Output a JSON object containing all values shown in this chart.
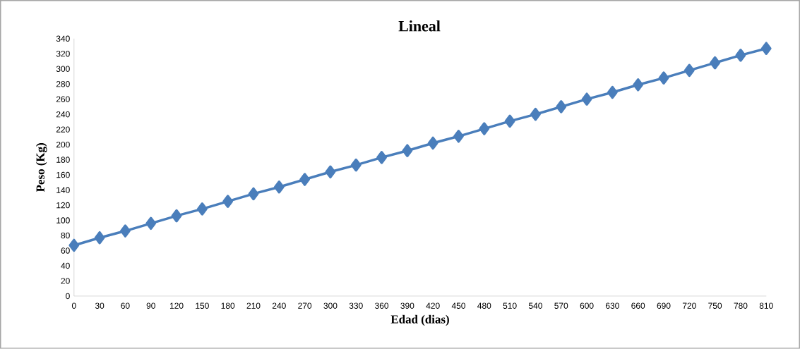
{
  "chart_data": {
    "type": "line",
    "title": "Lineal",
    "xlabel": "Edad (dias)",
    "ylabel": "Peso (Kg)",
    "categories": [
      "0",
      "30",
      "60",
      "90",
      "120",
      "150",
      "180",
      "210",
      "240",
      "270",
      "300",
      "330",
      "360",
      "390",
      "420",
      "450",
      "480",
      "510",
      "540",
      "570",
      "600",
      "630",
      "660",
      "690",
      "720",
      "750",
      "780",
      "810"
    ],
    "series": [
      {
        "color": "#4a7ebb",
        "values": [
          67,
          77,
          86,
          96,
          106,
          115,
          125,
          135,
          144,
          154,
          164,
          173,
          183,
          192,
          202,
          211,
          221,
          231,
          240,
          250,
          260,
          269,
          279,
          288,
          298,
          308,
          318,
          327
        ]
      }
    ],
    "ylim": [
      0,
      340
    ],
    "yticks": [
      0,
      20,
      40,
      60,
      80,
      100,
      120,
      140,
      160,
      180,
      200,
      220,
      240,
      260,
      280,
      300,
      320,
      340
    ],
    "marker": "diamond",
    "line_style": "solid",
    "grid": false
  }
}
